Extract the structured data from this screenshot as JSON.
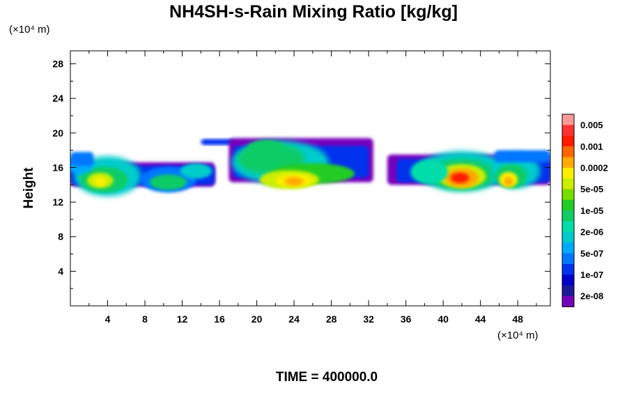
{
  "chart_data": {
    "type": "heatmap",
    "title": "NH4SH-s-Rain Mixing Ratio [kg/kg]",
    "xunit": "(×10⁴ m)",
    "yunit": "(×10⁴ m)",
    "ylabel": "Height",
    "xlabel": "",
    "footer": "TIME = 400000.0",
    "xlim": [
      0,
      51.5
    ],
    "ylim": [
      0,
      29.5
    ],
    "xticks": [
      4,
      8,
      12,
      16,
      20,
      24,
      28,
      32,
      36,
      40,
      44,
      48
    ],
    "yticks": [
      4,
      8,
      12,
      16,
      20,
      24,
      28
    ],
    "colorbar": {
      "labels": [
        "0.005",
        "0.001",
        "0.0002",
        "5e-05",
        "1e-05",
        "2e-06",
        "5e-07",
        "1e-07",
        "2e-08"
      ],
      "colors": [
        "#ff9999",
        "#ff3333",
        "#ff1a00",
        "#ff6600",
        "#ffaa00",
        "#ffee00",
        "#ccee00",
        "#77dd00",
        "#22cc22",
        "#11cc66",
        "#00ddaa",
        "#00cccc",
        "#00aaff",
        "#0077ff",
        "#0033ee",
        "#0000cc",
        "#1a1a99",
        "#7700bb"
      ]
    },
    "cloud_regions": [
      {
        "x_range": [
          0,
          15.5
        ],
        "y_range": [
          13,
          18
        ],
        "peak_x": 3.2,
        "peak_y": 14.5,
        "peak": "2e-06 to 5e-05"
      },
      {
        "x_range": [
          9,
          15.5
        ],
        "y_range": [
          13.5,
          16.5
        ],
        "peak_x": 10.5,
        "peak_y": 14.2,
        "peak": "2e-06"
      },
      {
        "x_range": [
          14,
          33
        ],
        "y_range": [
          13,
          19.5
        ],
        "peak_x": 24,
        "peak_y": 14.5,
        "peak": "0.0002"
      },
      {
        "x_range": [
          34,
          51.5
        ],
        "y_range": [
          13,
          18.2
        ],
        "peak_x": 42,
        "peak_y": 15,
        "peak": "0.001"
      },
      {
        "x_range": [
          45,
          51.5
        ],
        "y_range": [
          13,
          18
        ],
        "peak_x": 47,
        "peak_y": 14.5,
        "peak": "0.0002"
      }
    ]
  }
}
